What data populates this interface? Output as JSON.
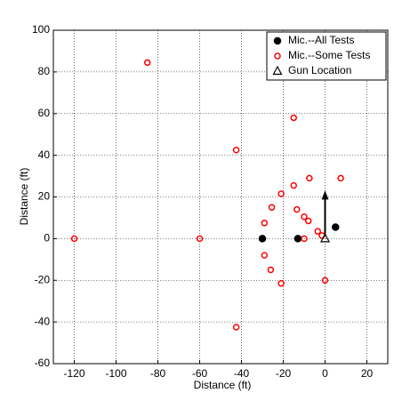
{
  "chart_data": {
    "type": "scatter",
    "xlabel": "Distance (ft)",
    "ylabel": "Distance (ft)",
    "xlim": [
      -130,
      30
    ],
    "ylim": [
      -60,
      100
    ],
    "xticks": [
      -120,
      -100,
      -80,
      -60,
      -40,
      -20,
      0,
      20
    ],
    "yticks": [
      -60,
      -40,
      -20,
      0,
      20,
      40,
      60,
      80,
      100
    ],
    "grid": true,
    "legend": "upper right",
    "series": [
      {
        "name": "Mic.--All Tests",
        "color": "#000000",
        "marker": "filled-circle",
        "x": [
          -30,
          -13,
          5
        ],
        "y": [
          0,
          0,
          5.5
        ]
      },
      {
        "name": "Mic.--Some Tests",
        "color": "#ff0000",
        "marker": "open-circle",
        "x": [
          -85,
          -120,
          -60,
          -42.5,
          -42.5,
          -15,
          7.5,
          -7.5,
          -15,
          -21,
          -25.5,
          -29,
          -29,
          -26,
          -21,
          -13.5,
          -10,
          -8,
          -10,
          -3.5,
          -1.5,
          0
        ],
        "y": [
          84.5,
          0,
          0,
          42.5,
          -42.5,
          58,
          29,
          29,
          25.5,
          21.5,
          15,
          7.5,
          -8,
          -15,
          -21.5,
          14,
          10.5,
          8.5,
          0,
          3.5,
          1.5,
          -20
        ]
      },
      {
        "name": "Gun Location",
        "color": "#000000",
        "marker": "triangle",
        "x": [
          0
        ],
        "y": [
          0
        ]
      }
    ]
  }
}
